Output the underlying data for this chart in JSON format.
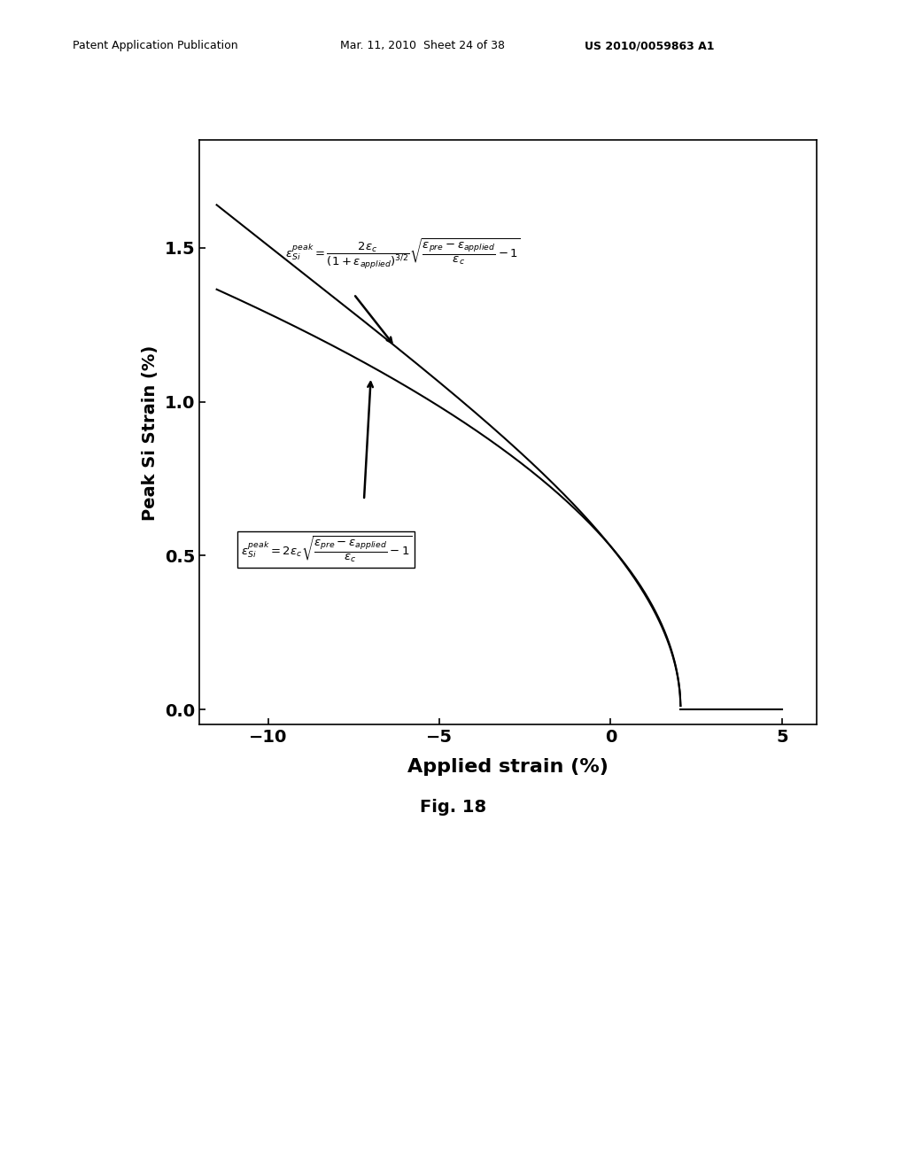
{
  "xlim": [
    -12,
    6
  ],
  "ylim": [
    -0.05,
    1.85
  ],
  "xticks": [
    -10,
    -5,
    0,
    5
  ],
  "yticks": [
    0.0,
    0.5,
    1.0,
    1.5
  ],
  "xlabel": "Applied strain (%)",
  "ylabel": "Peak Si Strain (%)",
  "fig_caption": "Fig. 18",
  "header_left": "Patent Application Publication",
  "header_center": "Mar. 11, 2010  Sheet 24 of 38",
  "header_right": "US 2010/0059863 A1",
  "eps_pre_pct": 0.56,
  "eps_c_pct": 0.00039,
  "x_start_pct": -11.5,
  "flat_end_pct": 5.0,
  "bg_color": "#ffffff",
  "curve_color": "#000000",
  "curve_linewidth": 1.5
}
